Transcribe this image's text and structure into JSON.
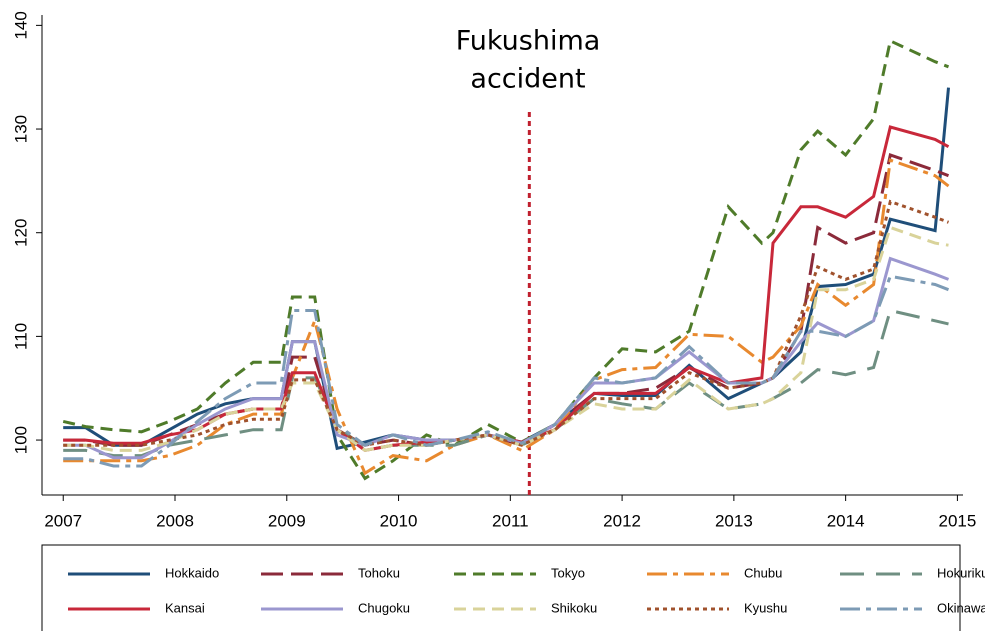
{
  "chart_data": {
    "type": "line",
    "annotation": {
      "lines": [
        "Fukushima",
        "accident"
      ],
      "x": 2011.17,
      "color": "#c0202e"
    },
    "xlim": [
      2006.81,
      2015.05
    ],
    "ylim": [
      94.7,
      141
    ],
    "xticks": [
      2007,
      2008,
      2009,
      2010,
      2011,
      2012,
      2013,
      2014,
      2015
    ],
    "yticks": [
      100,
      110,
      120,
      130,
      140
    ],
    "x": [
      2007.0,
      2007.2,
      2007.45,
      2007.7,
      2007.95,
      2008.2,
      2008.45,
      2008.7,
      2008.95,
      2009.05,
      2009.25,
      2009.45,
      2009.7,
      2009.95,
      2010.25,
      2010.5,
      2010.8,
      2011.1,
      2011.4,
      2011.75,
      2012.0,
      2012.3,
      2012.6,
      2012.95,
      2013.25,
      2013.35,
      2013.6,
      2013.75,
      2014.0,
      2014.25,
      2014.4,
      2014.8,
      2014.92
    ],
    "series": [
      {
        "name": "Hokkaido",
        "color": "#1f4e79",
        "style": "solid",
        "values": [
          101.2,
          101.2,
          99.5,
          99.5,
          101,
          102.5,
          103.5,
          104,
          104,
          109.5,
          109.5,
          99.2,
          99.8,
          100.5,
          100,
          100,
          100.5,
          99.8,
          101.5,
          104.5,
          104.3,
          104.3,
          107.2,
          104,
          105.5,
          106,
          108.5,
          114.8,
          115,
          116,
          121.3,
          120.2,
          134
        ]
      },
      {
        "name": "Tohoku",
        "color": "#8b2a3a",
        "style": "longdash",
        "values": [
          100,
          100,
          99.5,
          99.5,
          100.5,
          101.5,
          102.5,
          103,
          103,
          108,
          108,
          101,
          99.5,
          100,
          99.5,
          100,
          100.5,
          99.5,
          101.5,
          104.5,
          104.5,
          105,
          107,
          105,
          105.5,
          106,
          110.5,
          120.5,
          119,
          120,
          127.5,
          126,
          125.5
        ]
      },
      {
        "name": "Tokyo",
        "color": "#4f7b2a",
        "style": "dash",
        "values": [
          101.8,
          101.3,
          101,
          100.8,
          101.8,
          103,
          105.5,
          107.5,
          107.5,
          113.8,
          113.8,
          100.5,
          96.3,
          98,
          100.5,
          99.5,
          101.5,
          99.8,
          101.5,
          106,
          108.8,
          108.5,
          110.5,
          122.5,
          119,
          120,
          128,
          129.8,
          127.5,
          131,
          138.5,
          136.5,
          136
        ]
      },
      {
        "name": "Chubu",
        "color": "#e8892f",
        "style": "dashdot",
        "values": [
          98,
          98,
          98,
          98,
          98.5,
          99.5,
          101.5,
          102.5,
          102.5,
          106,
          111.5,
          103,
          96.8,
          98.5,
          98,
          99.5,
          100.5,
          99,
          101,
          105.8,
          106.8,
          107,
          110.2,
          110,
          107.5,
          108,
          111,
          115,
          113,
          115,
          127,
          125.5,
          124.5
        ]
      },
      {
        "name": "Hokuriku",
        "color": "#6f8f82",
        "style": "longdashgap",
        "values": [
          99,
          99,
          98.5,
          98.5,
          99.5,
          100,
          100.5,
          101,
          101,
          106,
          106,
          101.5,
          99,
          99.5,
          99.5,
          99.5,
          100.5,
          99.5,
          101,
          104,
          103.5,
          103,
          105.5,
          103,
          103.5,
          104,
          105.5,
          106.8,
          106.3,
          107,
          112.5,
          111.5,
          111.2
        ]
      },
      {
        "name": "Kansai",
        "color": "#c8283a",
        "style": "solid",
        "values": [
          100,
          100,
          99.7,
          99.7,
          100.5,
          101,
          102.5,
          103,
          103,
          106.5,
          106.5,
          101,
          99,
          99.5,
          99.8,
          100,
          100.5,
          99.8,
          101,
          104.5,
          104.5,
          104.5,
          107,
          105.5,
          106,
          119,
          122.5,
          122.5,
          121.5,
          123.5,
          130.2,
          129,
          128.3
        ]
      },
      {
        "name": "Chugoku",
        "color": "#9b97cf",
        "style": "solid",
        "values": [
          99.5,
          99.5,
          98.3,
          98.3,
          99.8,
          101.5,
          103,
          104,
          104,
          109.5,
          109.5,
          100.5,
          99.5,
          100.5,
          100,
          100,
          100.5,
          99.7,
          101.5,
          105.5,
          105.5,
          106,
          108.5,
          105.5,
          105.5,
          106,
          109.5,
          111.3,
          110,
          111.5,
          117.5,
          116,
          115.5
        ]
      },
      {
        "name": "Shikoku",
        "color": "#d9d39a",
        "style": "dash",
        "values": [
          99.5,
          99.5,
          99,
          99,
          99.8,
          101,
          102.5,
          103,
          103,
          105.5,
          105.5,
          101,
          99,
          99.5,
          99.5,
          100,
          100.5,
          99.5,
          101,
          103.5,
          103,
          103,
          105.8,
          103,
          103.5,
          104,
          106.5,
          114.5,
          114.5,
          115.5,
          120.5,
          119,
          118.8
        ]
      },
      {
        "name": "Kyushu",
        "color": "#a0522d",
        "style": "dot",
        "values": [
          99.5,
          99.5,
          99.5,
          99.5,
          100,
          100.5,
          101.5,
          102,
          102,
          105.8,
          105.8,
          101,
          99.5,
          100,
          99.5,
          100,
          100.5,
          99.5,
          101,
          104,
          104,
          104,
          106.5,
          105,
          105.5,
          106,
          112,
          116.7,
          115.5,
          116.5,
          123,
          121.5,
          121
        ]
      },
      {
        "name": "Okinawa",
        "color": "#7d9bb5",
        "style": "dashdot",
        "values": [
          98.2,
          98.2,
          97.5,
          97.5,
          99.5,
          101.8,
          104,
          105.5,
          105.5,
          112.5,
          112.5,
          101.5,
          99.5,
          100.5,
          99.5,
          100,
          100.8,
          99.7,
          101.5,
          106,
          105.5,
          106,
          109,
          105.5,
          105.5,
          106,
          110.5,
          110.5,
          110,
          111.5,
          115.8,
          115,
          114.5
        ]
      }
    ]
  }
}
